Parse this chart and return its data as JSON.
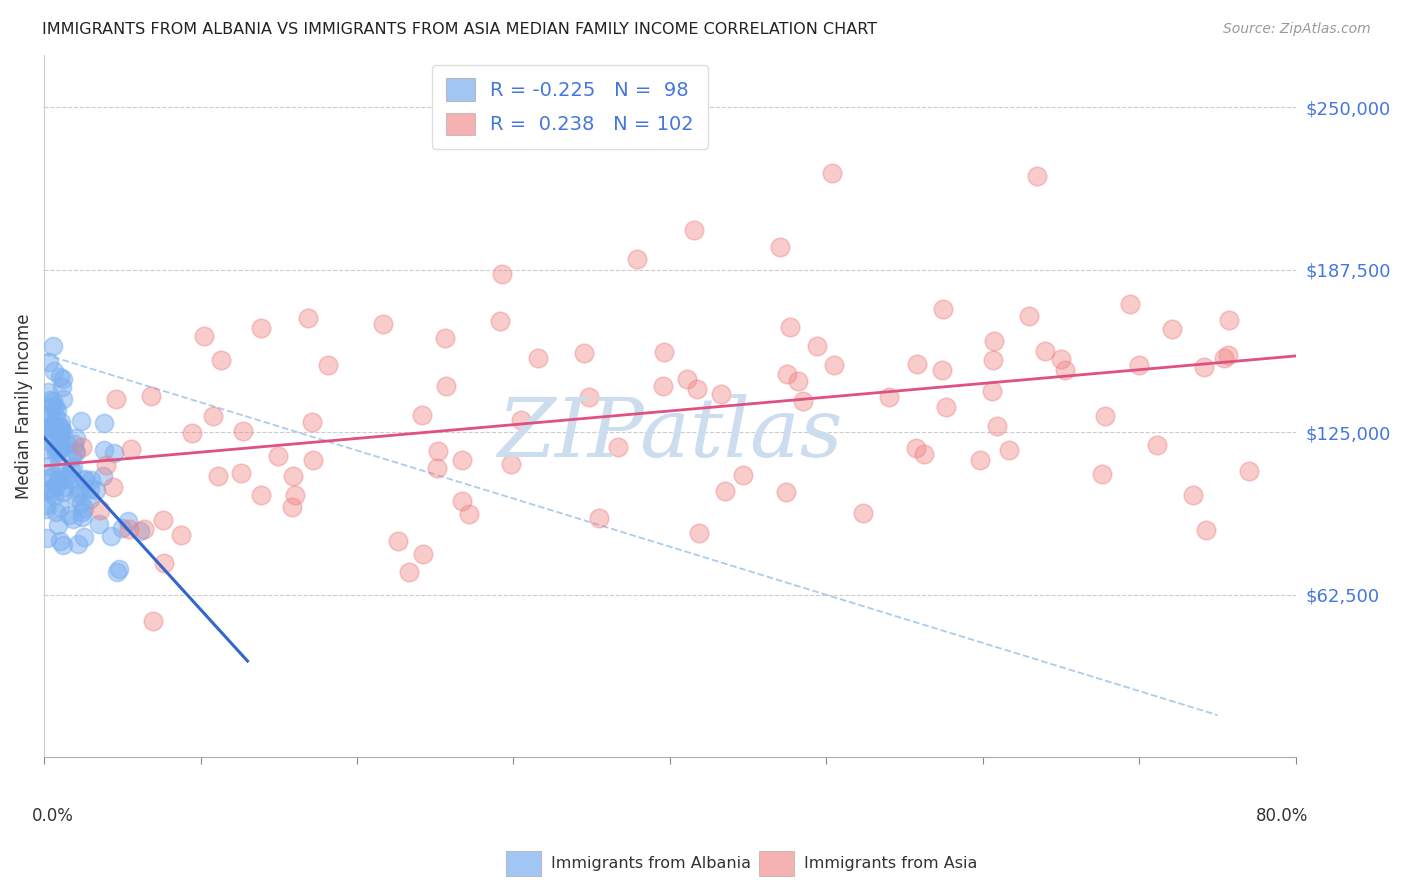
{
  "title": "IMMIGRANTS FROM ALBANIA VS IMMIGRANTS FROM ASIA MEDIAN FAMILY INCOME CORRELATION CHART",
  "source": "Source: ZipAtlas.com",
  "ylabel": "Median Family Income",
  "ytick_values": [
    62500,
    125000,
    187500,
    250000
  ],
  "ymin": 0,
  "ymax": 270000,
  "xmin": 0.0,
  "xmax": 0.8,
  "legend_r_albania": "-0.225",
  "legend_n_albania": "98",
  "legend_r_asia": "0.238",
  "legend_n_asia": "102",
  "albania_color": "#7aaff0",
  "asia_color": "#f08080",
  "albania_trend_color": "#3366cc",
  "asia_trend_color": "#e05080",
  "dashed_line_color": "#aaccee",
  "background_color": "#ffffff",
  "watermark_text": "ZIPatlas",
  "watermark_color": "#ccddf0",
  "text_blue": "#4477dd",
  "text_pink": "#dd4488"
}
